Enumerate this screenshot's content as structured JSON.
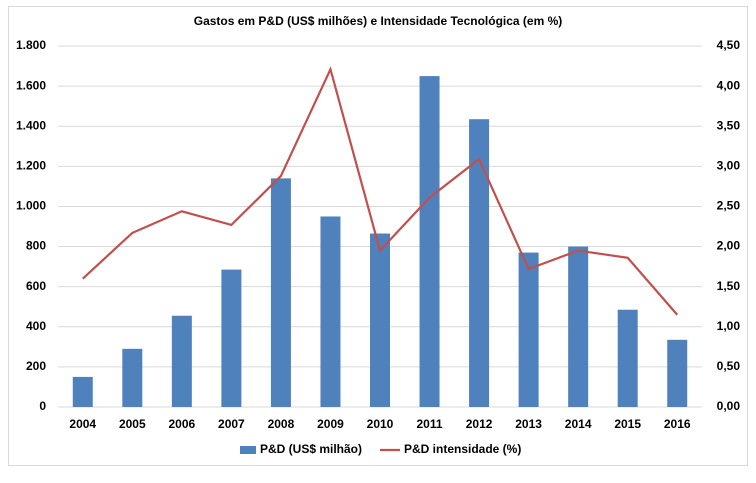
{
  "chart_data": {
    "type": "bar",
    "title": "Gastos em P&D (US$ milhões) e Intensidade Tecnológica (em %)",
    "categories": [
      "2004",
      "2005",
      "2006",
      "2007",
      "2008",
      "2009",
      "2010",
      "2011",
      "2012",
      "2013",
      "2014",
      "2015",
      "2016"
    ],
    "series": [
      {
        "name": "P&D (US$ milhão)",
        "type": "bar",
        "color": "#4f81bd",
        "axis": "y",
        "values": [
          150,
          290,
          455,
          685,
          1140,
          950,
          865,
          1650,
          1435,
          770,
          800,
          485,
          335
        ]
      },
      {
        "name": "P&D intensidade (%)",
        "type": "line",
        "color": "#c0504d",
        "axis": "y2",
        "values": [
          1.6,
          2.17,
          2.44,
          2.27,
          2.88,
          4.21,
          1.95,
          2.61,
          3.09,
          1.72,
          1.95,
          1.86,
          1.15
        ]
      }
    ],
    "ylim": [
      0,
      1800
    ],
    "yticks": [
      0,
      {
        "value": 200,
        "label": "200"
      },
      {
        "value": 400,
        "label": "400"
      },
      {
        "value": 600,
        "label": "600"
      },
      {
        "value": 800,
        "label": "800"
      },
      {
        "value": 1000,
        "label": "1.000"
      },
      {
        "value": 1200,
        "label": "1.200"
      },
      {
        "value": 1400,
        "label": "1.400"
      },
      {
        "value": 1600,
        "label": "1.600"
      },
      {
        "value": 1800,
        "label": "1.800"
      }
    ],
    "y2lim": [
      0,
      4.5
    ],
    "y2ticks": [
      {
        "value": 0,
        "label": "0,00"
      },
      {
        "value": 0.5,
        "label": "0,50"
      },
      {
        "value": 1,
        "label": "1,00"
      },
      {
        "value": 1.5,
        "label": "1,50"
      },
      {
        "value": 2,
        "label": "2,00"
      },
      {
        "value": 2.5,
        "label": "2,50"
      },
      {
        "value": 3,
        "label": "3,00"
      },
      {
        "value": 3.5,
        "label": "3,50"
      },
      {
        "value": 4,
        "label": "4,00"
      },
      {
        "value": 4.5,
        "label": "4,50"
      }
    ],
    "grid": true,
    "legend": "bottom"
  }
}
